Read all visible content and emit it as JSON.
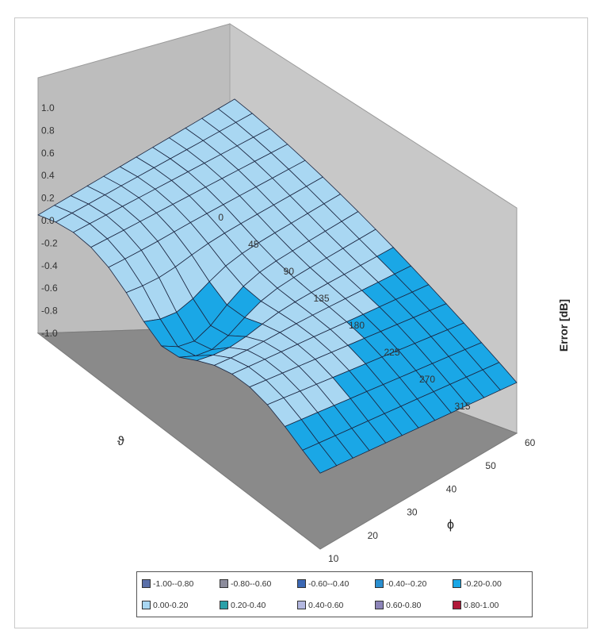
{
  "chart_data": {
    "type": "surface",
    "zlabel": "Error [dB]",
    "theta_label": "ϑ",
    "phi_label": "ϕ",
    "theta_ticks": [
      "0",
      "45",
      "90",
      "135",
      "180",
      "225",
      "270",
      "315"
    ],
    "phi_ticks": [
      "10",
      "20",
      "30",
      "40",
      "50",
      "60"
    ],
    "z_ticks": [
      "1.0",
      "0.8",
      "0.6",
      "0.4",
      "0.2",
      "0.0",
      "-0.2",
      "-0.4",
      "-0.6",
      "-0.8",
      "-1.0"
    ],
    "zlim": [
      -1.0,
      1.0
    ],
    "theta_range": [
      0,
      360
    ],
    "phi_range": [
      10,
      60
    ],
    "colors": {
      "wall": "#bdbdbd",
      "floor": "#8a8a8a",
      "mesh_line": "#1a2540",
      "band_light": "#a9d7f2",
      "band_medium": "#1aa7e6"
    },
    "legend": [
      {
        "label": "-1.00--0.80",
        "color": "#5a6fa8"
      },
      {
        "label": "-0.80--0.60",
        "color": "#8c8c9c"
      },
      {
        "label": "-0.60--0.40",
        "color": "#3b68b4"
      },
      {
        "label": "-0.40--0.20",
        "color": "#2a8fd0"
      },
      {
        "label": "-0.20-0.00",
        "color": "#1aa7e6"
      },
      {
        "label": "0.00-0.20",
        "color": "#a9d7f2"
      },
      {
        "label": "0.20-0.40",
        "color": "#2aa0a8"
      },
      {
        "label": "0.40-0.60",
        "color": "#b4b8e0"
      },
      {
        "label": "0.60-0.80",
        "color": "#8c84b8"
      },
      {
        "label": "0.80-1.00",
        "color": "#b01a3a"
      }
    ]
  }
}
